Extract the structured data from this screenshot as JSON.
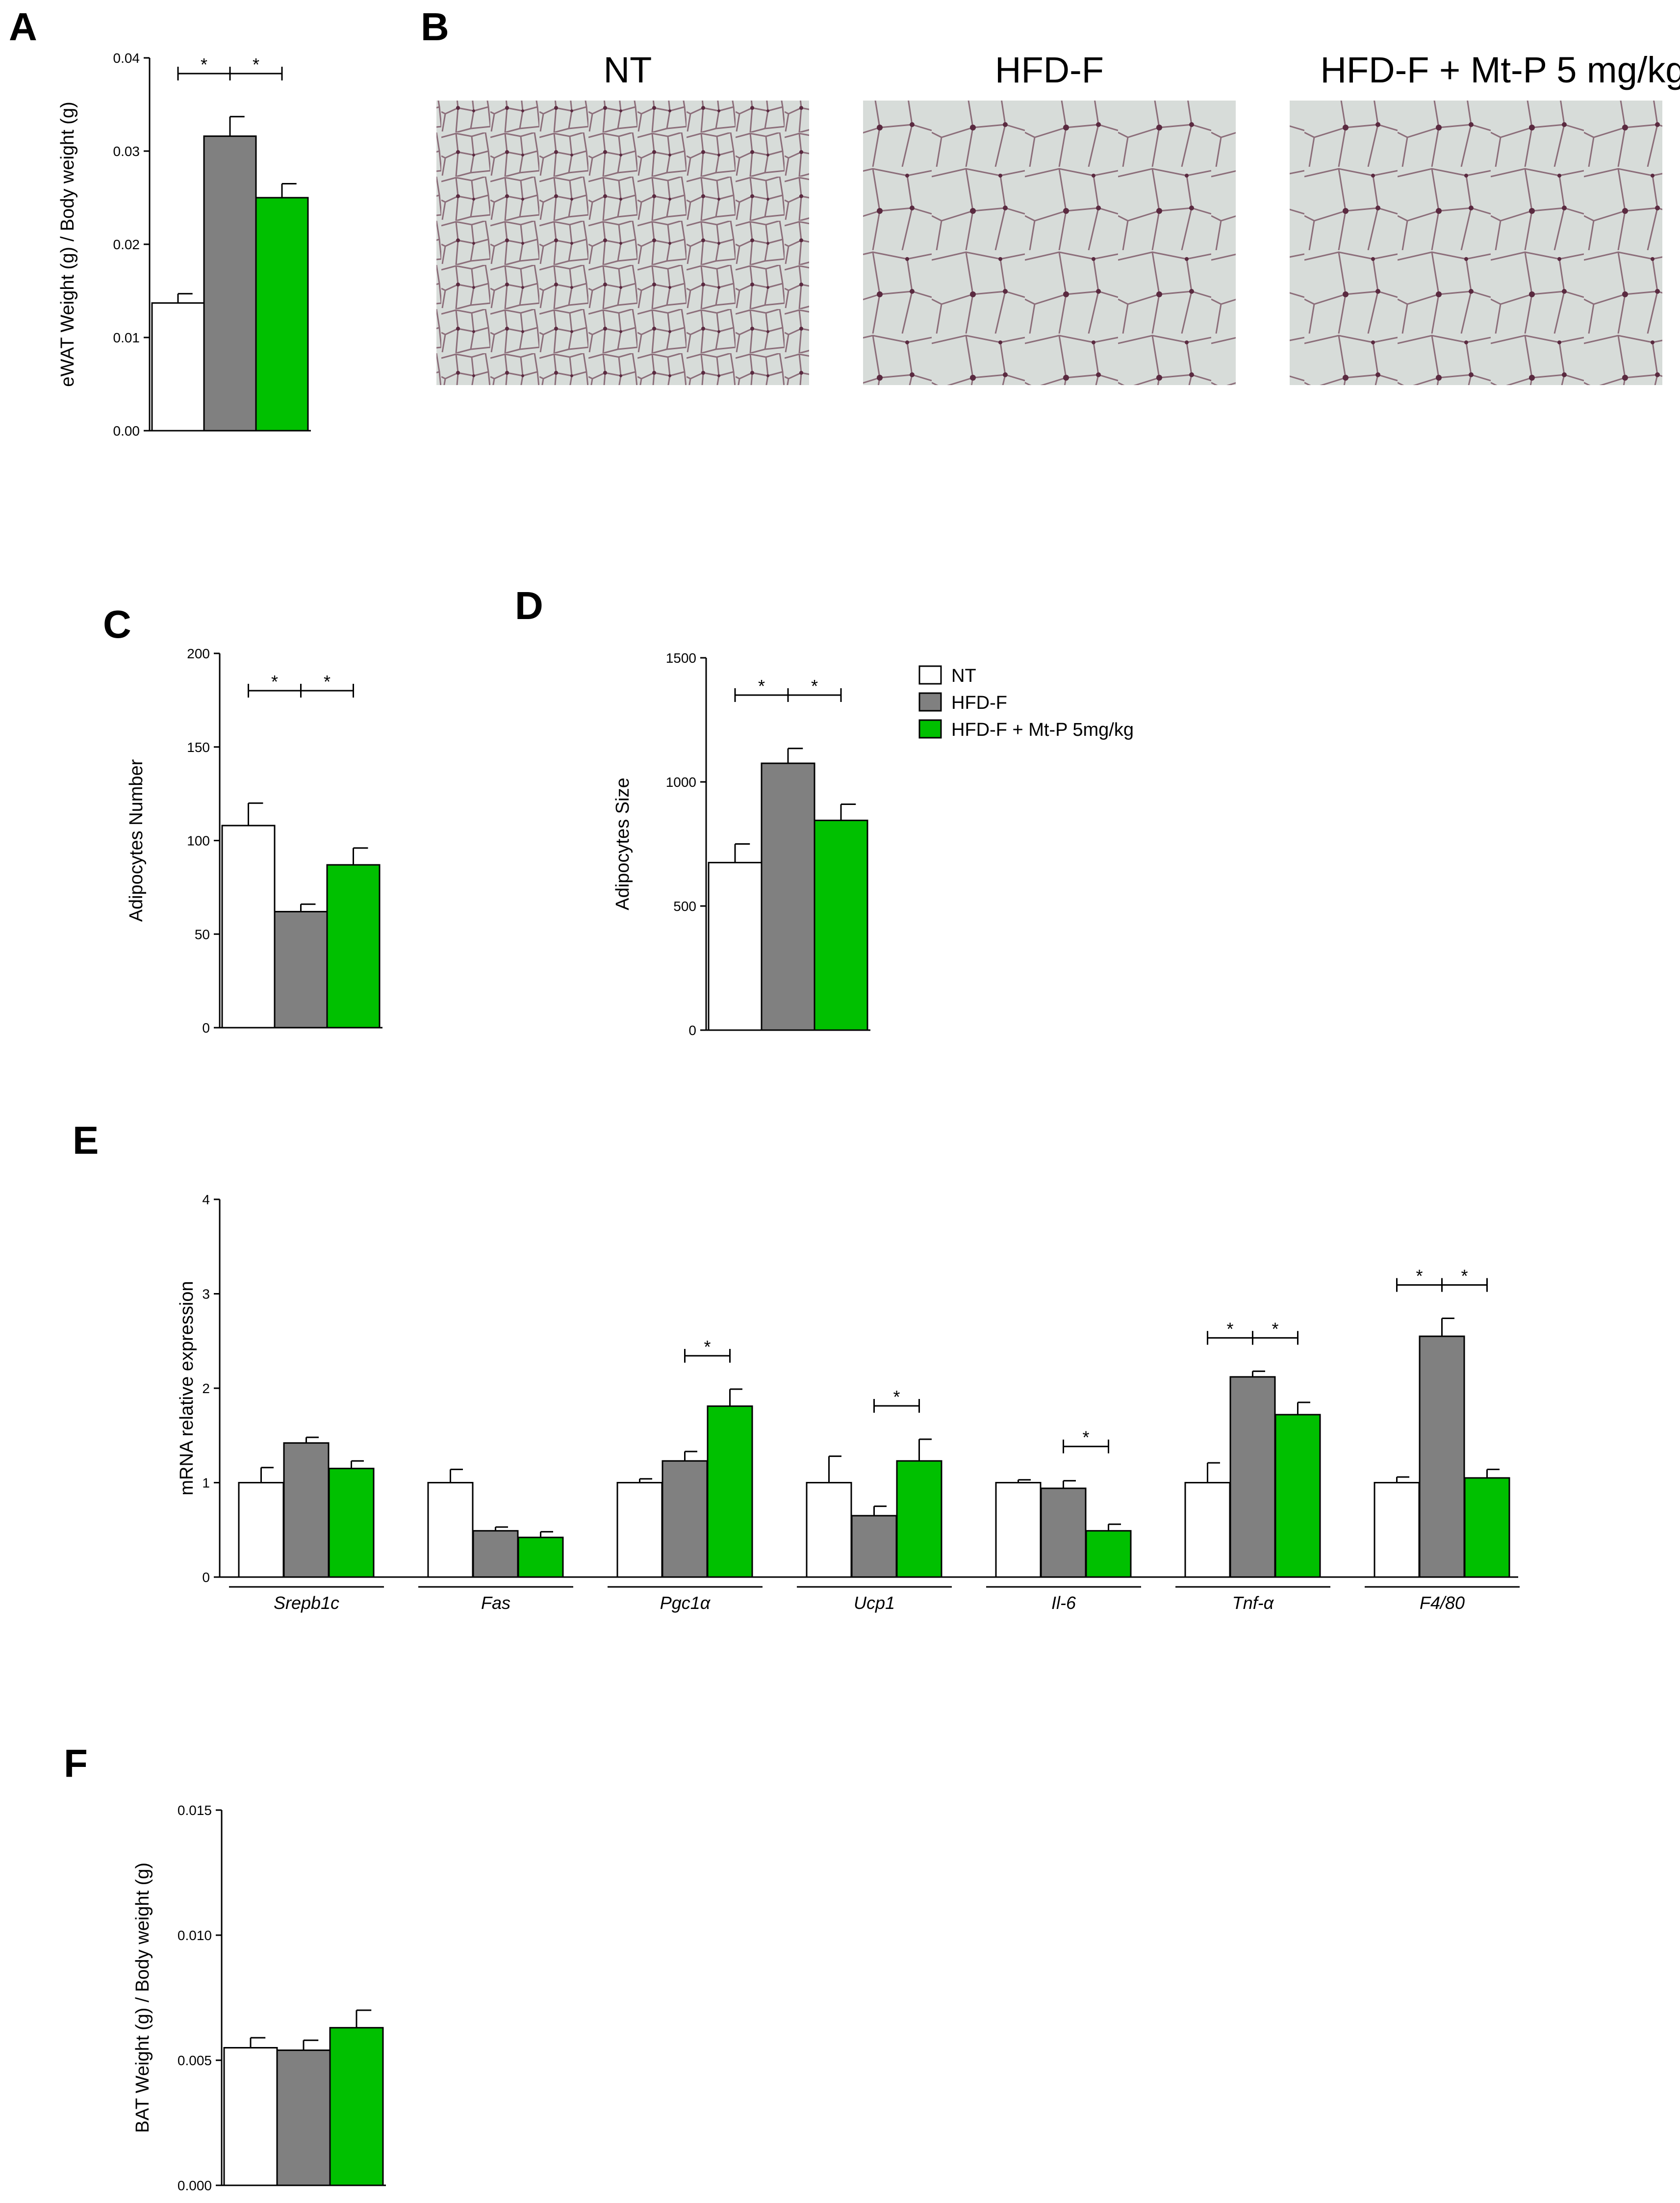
{
  "colors": {
    "nt": "#ffffff",
    "hfd": "#808080",
    "mtp": "#00c000",
    "stroke": "#000000"
  },
  "legend": {
    "items": [
      {
        "label": "NT",
        "color": "#ffffff"
      },
      {
        "label": "HFD-F",
        "color": "#808080"
      },
      {
        "label": "HFD-F + Mt-P 5mg/kg",
        "color": "#00c000"
      }
    ]
  },
  "micrographs": [
    {
      "letter": "B",
      "title": "NT"
    },
    {
      "title": "HFD-F"
    },
    {
      "title": "HFD-F + Mt-P 5 mg/kg"
    }
  ],
  "chart_data": [
    {
      "id": "A",
      "type": "bar",
      "ylabel": "eWAT Weight (g) / Body weight (g)",
      "ylim": [
        0,
        0.04
      ],
      "yticks": [
        "0.00",
        "0.01",
        "0.02",
        "0.03",
        "0.04"
      ],
      "groups": [
        "NT",
        "HFD-F",
        "HFD-F + Mt-P 5mg/kg"
      ],
      "values": [
        0.0137,
        0.0316,
        0.025
      ],
      "errors": [
        0.001,
        0.0021,
        0.0015
      ],
      "significance": [
        {
          "from": 0,
          "to": 1,
          "label": "*"
        },
        {
          "from": 1,
          "to": 2,
          "label": "*"
        }
      ]
    },
    {
      "id": "C",
      "type": "bar",
      "ylabel": "Adipocytes Number",
      "ylim": [
        0,
        200
      ],
      "yticks": [
        "0",
        "50",
        "100",
        "150",
        "200"
      ],
      "groups": [
        "NT",
        "HFD-F",
        "HFD-F + Mt-P 5mg/kg"
      ],
      "values": [
        108,
        62,
        87
      ],
      "errors": [
        12,
        4,
        9
      ],
      "significance": [
        {
          "from": 0,
          "to": 1,
          "label": "*"
        },
        {
          "from": 1,
          "to": 2,
          "label": "*"
        }
      ]
    },
    {
      "id": "D",
      "type": "bar",
      "ylabel": "Adipocytes Size",
      "ylim": [
        0,
        1500
      ],
      "yticks": [
        "0",
        "500",
        "1000",
        "1500"
      ],
      "groups": [
        "NT",
        "HFD-F",
        "HFD-F + Mt-P 5mg/kg"
      ],
      "values": [
        675,
        1075,
        845
      ],
      "errors": [
        75,
        60,
        65
      ],
      "significance": [
        {
          "from": 0,
          "to": 1,
          "label": "*"
        },
        {
          "from": 1,
          "to": 2,
          "label": "*"
        }
      ]
    },
    {
      "id": "E",
      "type": "bar",
      "ylabel": "mRNA relative expression",
      "ylim": [
        0,
        4
      ],
      "yticks": [
        "0",
        "1",
        "2",
        "3",
        "4"
      ],
      "categories": [
        "Srepb1c",
        "Fas",
        "Pgc1α",
        "Ucp1",
        "Il-6",
        "Tnf-α",
        "F4/80"
      ],
      "series": [
        {
          "name": "NT",
          "values": [
            1.0,
            1.0,
            1.0,
            1.0,
            1.0,
            1.0,
            1.0
          ],
          "errors": [
            0.16,
            0.14,
            0.04,
            0.28,
            0.03,
            0.21,
            0.06
          ]
        },
        {
          "name": "HFD-F",
          "values": [
            1.42,
            0.49,
            1.23,
            0.65,
            0.94,
            2.12,
            2.55
          ],
          "errors": [
            0.06,
            0.04,
            0.1,
            0.1,
            0.08,
            0.06,
            0.19
          ]
        },
        {
          "name": "HFD-F + Mt-P 5mg/kg",
          "values": [
            1.15,
            0.42,
            1.81,
            1.23,
            0.49,
            1.72,
            1.05
          ],
          "errors": [
            0.08,
            0.06,
            0.18,
            0.23,
            0.07,
            0.13,
            0.09
          ]
        }
      ],
      "significance": [
        {
          "category": 2,
          "from": 1,
          "to": 2,
          "label": "*"
        },
        {
          "category": 3,
          "from": 1,
          "to": 2,
          "label": "*"
        },
        {
          "category": 4,
          "from": 1,
          "to": 2,
          "label": "*"
        },
        {
          "category": 5,
          "from": 0,
          "to": 1,
          "label": "*"
        },
        {
          "category": 5,
          "from": 1,
          "to": 2,
          "label": "*"
        },
        {
          "category": 6,
          "from": 0,
          "to": 1,
          "label": "*"
        },
        {
          "category": 6,
          "from": 1,
          "to": 2,
          "label": "*"
        }
      ]
    },
    {
      "id": "F",
      "type": "bar",
      "ylabel": "BAT Weight (g) / Body weight (g)",
      "ylim": [
        0,
        0.015
      ],
      "yticks": [
        "0.000",
        "0.005",
        "0.010",
        "0.015"
      ],
      "groups": [
        "NT",
        "HFD-F",
        "HFD-F + Mt-P 5mg/kg"
      ],
      "values": [
        0.0055,
        0.0054,
        0.0063
      ],
      "errors": [
        0.0004,
        0.0004,
        0.0007
      ],
      "significance": []
    }
  ]
}
